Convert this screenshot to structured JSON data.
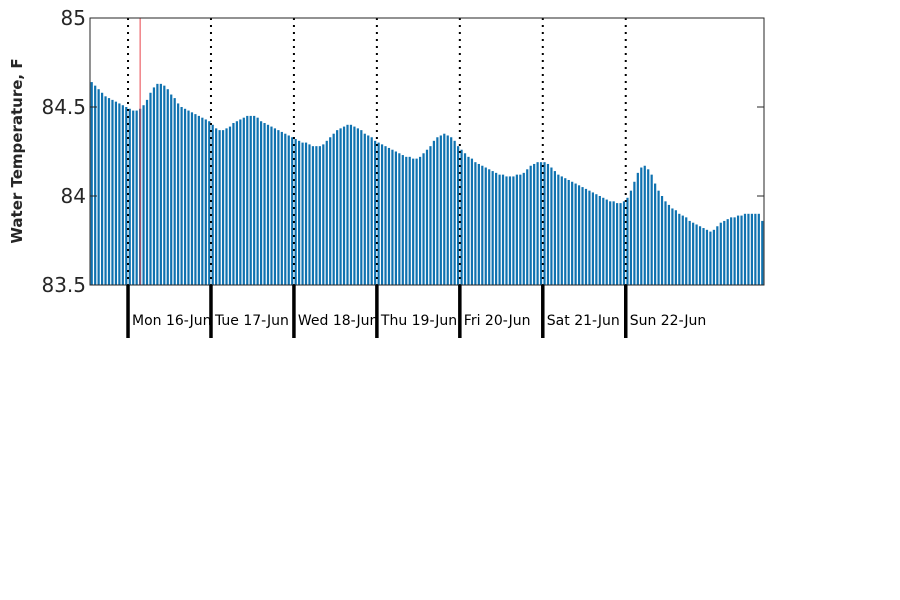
{
  "chart_data": {
    "type": "bar",
    "title": "",
    "xlabel": "",
    "ylabel": "Water Temperature, F",
    "ylim": [
      83.5,
      85
    ],
    "yticks": [
      83.5,
      84,
      84.5,
      85
    ],
    "ytick_labels": [
      "83.5",
      "84",
      "84.5",
      "85"
    ],
    "bar_color": "#0f72b0",
    "marker_color": "#e8434a",
    "grid": false,
    "days": [
      "Mon 16-Jun",
      "Tue 17-Jun",
      "Wed 18-Jun",
      "Thu 19-Jun",
      "Fri 20-Jun",
      "Sat 21-Jun",
      "Sun 22-Jun"
    ],
    "hours_before_first_day": 11,
    "marker_hour": 14.5,
    "series": [
      {
        "values": [
          84.64,
          84.62,
          84.6,
          84.58,
          84.56,
          84.55,
          84.54,
          84.53,
          84.52,
          84.51,
          84.5,
          84.49,
          84.48,
          84.48,
          84.49,
          84.51,
          84.54,
          84.58,
          84.61,
          84.63,
          84.63,
          84.62,
          84.6,
          84.57,
          84.55,
          84.52,
          84.5,
          84.49,
          84.48,
          84.47,
          84.46,
          84.45,
          84.44,
          84.43,
          84.42,
          84.4,
          84.38,
          84.37,
          84.37,
          84.38,
          84.39,
          84.41,
          84.42,
          84.43,
          84.44,
          84.45,
          84.45,
          84.45,
          84.44,
          84.42,
          84.41,
          84.4,
          84.39,
          84.38,
          84.37,
          84.36,
          84.35,
          84.34,
          84.33,
          84.32,
          84.31,
          84.3,
          84.3,
          84.29,
          84.28,
          84.28,
          84.28,
          84.29,
          84.31,
          84.33,
          84.35,
          84.37,
          84.38,
          84.39,
          84.4,
          84.4,
          84.39,
          84.38,
          84.37,
          84.35,
          84.34,
          84.33,
          84.31,
          84.3,
          84.29,
          84.28,
          84.27,
          84.26,
          84.25,
          84.24,
          84.23,
          84.22,
          84.22,
          84.21,
          84.21,
          84.22,
          84.24,
          84.26,
          84.28,
          84.31,
          84.33,
          84.34,
          84.35,
          84.34,
          84.33,
          84.31,
          84.28,
          84.26,
          84.24,
          84.22,
          84.21,
          84.19,
          84.18,
          84.17,
          84.16,
          84.15,
          84.14,
          84.13,
          84.12,
          84.12,
          84.11,
          84.11,
          84.11,
          84.12,
          84.12,
          84.13,
          84.15,
          84.17,
          84.18,
          84.19,
          84.19,
          84.19,
          84.18,
          84.16,
          84.14,
          84.12,
          84.11,
          84.1,
          84.09,
          84.08,
          84.07,
          84.06,
          84.05,
          84.04,
          84.03,
          84.02,
          84.01,
          84.0,
          83.99,
          83.98,
          83.97,
          83.97,
          83.96,
          83.96,
          83.97,
          83.99,
          84.03,
          84.08,
          84.13,
          84.16,
          84.17,
          84.15,
          84.12,
          84.07,
          84.03,
          84.0,
          83.97,
          83.95,
          83.93,
          83.92,
          83.9,
          83.89,
          83.88,
          83.86,
          83.85,
          83.84,
          83.83,
          83.82,
          83.81,
          83.8,
          83.81,
          83.83,
          83.85,
          83.86,
          83.87,
          83.88,
          83.88,
          83.89,
          83.89,
          83.9,
          83.9,
          83.9,
          83.9,
          83.9,
          83.86
        ]
      }
    ]
  }
}
